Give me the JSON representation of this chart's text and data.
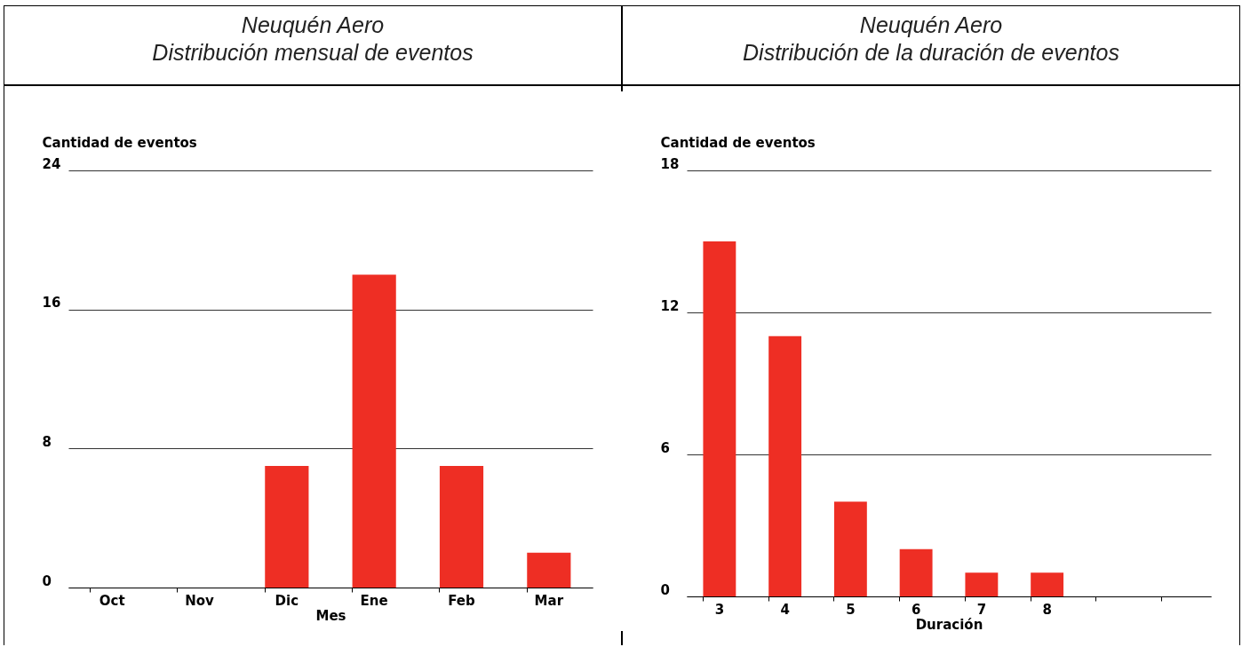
{
  "chart_data": [
    {
      "type": "bar",
      "title": "Neuquén Aero",
      "subtitle": "Distribución mensual de eventos",
      "xlabel": "Mes",
      "ylabel": "Cantidad de eventos",
      "categories": [
        "Oct",
        "Nov",
        "Dic",
        "Ene",
        "Feb",
        "Mar"
      ],
      "values": [
        0,
        0,
        7,
        18,
        7,
        2
      ],
      "color": "#ee2e24",
      "ylim": [
        0,
        24
      ],
      "yticks": [
        0,
        8,
        16,
        24
      ],
      "grid": "y"
    },
    {
      "type": "bar",
      "title": "Neuquén Aero",
      "subtitle": "Distribución de la duración de eventos",
      "xlabel": "Duración",
      "ylabel": "Cantidad de eventos",
      "categories": [
        "3",
        "4",
        "5",
        "6",
        "7",
        "8",
        null,
        null
      ],
      "values": [
        15,
        11,
        4,
        2,
        1,
        1,
        null,
        null
      ],
      "color": "#ee2e24",
      "ylim": [
        0,
        18
      ],
      "yticks": [
        0,
        6,
        12,
        18
      ],
      "grid": "y"
    }
  ]
}
